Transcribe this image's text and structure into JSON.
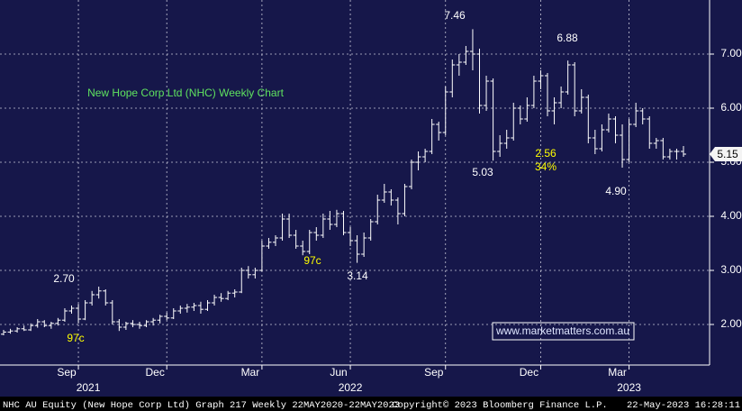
{
  "chart_data": {
    "type": "ohlc",
    "title": "New Hope Corp Ltd (NHC) Weekly Chart",
    "title_color": "#5fe35f",
    "bar_color": "#ffffff",
    "background": "#16174a",
    "grid": true,
    "ylim": [
      1.25,
      8.0
    ],
    "yticks": [
      {
        "value": 2,
        "label": "2.00"
      },
      {
        "value": 3,
        "label": "3.00"
      },
      {
        "value": 4,
        "label": "4.00"
      },
      {
        "value": 5,
        "label": "5.00"
      },
      {
        "value": 6,
        "label": "6.00"
      },
      {
        "value": 7,
        "label": "7.00"
      }
    ],
    "categories": [
      null,
      null,
      null,
      null,
      null,
      null,
      null,
      null,
      null,
      null,
      null,
      "Sep",
      null,
      null,
      null,
      null,
      null,
      null,
      null,
      null,
      null,
      null,
      null,
      null,
      "Dec",
      null,
      null,
      null,
      null,
      null,
      null,
      null,
      null,
      null,
      null,
      null,
      null,
      null,
      "Mar",
      null,
      null,
      null,
      null,
      null,
      null,
      null,
      null,
      null,
      null,
      null,
      null,
      "Jun",
      null,
      null,
      null,
      null,
      null,
      null,
      null,
      null,
      null,
      null,
      null,
      null,
      null,
      "Sep",
      null,
      null,
      null,
      null,
      null,
      null,
      null,
      null,
      null,
      null,
      null,
      null,
      null,
      "Dec",
      null,
      null,
      null,
      null,
      null,
      null,
      null,
      null,
      null,
      null,
      null,
      null,
      "Mar",
      null,
      null,
      null,
      null,
      null,
      null,
      null,
      null
    ],
    "years": [
      null,
      null,
      null,
      null,
      null,
      null,
      null,
      null,
      null,
      null,
      null,
      "2021",
      null,
      null,
      null,
      null,
      null,
      null,
      null,
      null,
      null,
      null,
      null,
      null,
      null,
      null,
      null,
      null,
      null,
      null,
      null,
      null,
      null,
      null,
      null,
      null,
      null,
      null,
      null,
      null,
      null,
      null,
      null,
      null,
      null,
      null,
      null,
      null,
      null,
      null,
      null,
      "2022",
      null,
      null,
      null,
      null,
      null,
      null,
      null,
      null,
      null,
      null,
      null,
      null,
      null,
      null,
      null,
      null,
      null,
      null,
      null,
      null,
      null,
      null,
      null,
      null,
      null,
      null,
      null,
      null,
      null,
      null,
      null,
      null,
      null,
      null,
      null,
      null,
      null,
      null,
      null,
      null,
      "2023",
      null,
      null,
      null,
      null,
      null,
      null,
      null,
      null
    ],
    "ohlc": [
      [
        1.82,
        1.9,
        1.8,
        1.86
      ],
      [
        1.86,
        1.92,
        1.83,
        1.88
      ],
      [
        1.88,
        1.95,
        1.85,
        1.92
      ],
      [
        1.92,
        1.98,
        1.88,
        1.9
      ],
      [
        1.9,
        2.02,
        1.88,
        1.98
      ],
      [
        1.98,
        2.1,
        1.94,
        2.05
      ],
      [
        2.05,
        2.08,
        1.95,
        1.98
      ],
      [
        1.98,
        2.05,
        1.92,
        2.02
      ],
      [
        2.02,
        2.12,
        1.98,
        2.08
      ],
      [
        2.08,
        2.3,
        2.05,
        2.25
      ],
      [
        2.25,
        2.35,
        2.2,
        2.3
      ],
      [
        2.3,
        2.38,
        2.02,
        2.1
      ],
      [
        2.1,
        2.45,
        2.08,
        2.4
      ],
      [
        2.4,
        2.62,
        2.35,
        2.55
      ],
      [
        2.55,
        2.7,
        2.48,
        2.62
      ],
      [
        2.62,
        2.65,
        2.35,
        2.4
      ],
      [
        2.4,
        2.45,
        2.0,
        2.05
      ],
      [
        2.05,
        2.1,
        1.88,
        1.95
      ],
      [
        1.95,
        2.05,
        1.9,
        2.02
      ],
      [
        2.02,
        2.08,
        1.95,
        2.0
      ],
      [
        2.0,
        2.05,
        1.92,
        1.98
      ],
      [
        1.98,
        2.08,
        1.95,
        2.05
      ],
      [
        2.05,
        2.12,
        1.98,
        2.08
      ],
      [
        2.08,
        2.18,
        2.02,
        2.15
      ],
      [
        2.15,
        2.22,
        2.08,
        2.12
      ],
      [
        2.12,
        2.3,
        2.1,
        2.25
      ],
      [
        2.25,
        2.35,
        2.2,
        2.3
      ],
      [
        2.3,
        2.38,
        2.22,
        2.32
      ],
      [
        2.32,
        2.4,
        2.25,
        2.35
      ],
      [
        2.35,
        2.42,
        2.2,
        2.28
      ],
      [
        2.28,
        2.45,
        2.25,
        2.4
      ],
      [
        2.4,
        2.55,
        2.35,
        2.5
      ],
      [
        2.5,
        2.58,
        2.42,
        2.48
      ],
      [
        2.48,
        2.62,
        2.45,
        2.58
      ],
      [
        2.58,
        2.65,
        2.5,
        2.6
      ],
      [
        2.6,
        3.05,
        2.58,
        3.0
      ],
      [
        3.0,
        3.08,
        2.85,
        2.92
      ],
      [
        2.92,
        3.05,
        2.85,
        3.0
      ],
      [
        3.0,
        3.55,
        2.98,
        3.45
      ],
      [
        3.45,
        3.6,
        3.4,
        3.52
      ],
      [
        3.52,
        3.65,
        3.45,
        3.6
      ],
      [
        3.6,
        4.05,
        3.55,
        3.95
      ],
      [
        3.95,
        4.05,
        3.6,
        3.65
      ],
      [
        3.65,
        3.75,
        3.4,
        3.45
      ],
      [
        3.45,
        3.55,
        3.28,
        3.35
      ],
      [
        3.35,
        3.75,
        3.3,
        3.7
      ],
      [
        3.7,
        3.8,
        3.55,
        3.65
      ],
      [
        3.65,
        4.05,
        3.6,
        3.95
      ],
      [
        3.95,
        4.1,
        3.75,
        3.85
      ],
      [
        3.85,
        4.12,
        3.8,
        4.05
      ],
      [
        4.05,
        4.1,
        3.65,
        3.7
      ],
      [
        3.7,
        3.8,
        3.45,
        3.55
      ],
      [
        3.55,
        3.65,
        3.14,
        3.3
      ],
      [
        3.3,
        3.7,
        3.25,
        3.6
      ],
      [
        3.6,
        3.95,
        3.55,
        3.9
      ],
      [
        3.9,
        4.4,
        3.85,
        4.3
      ],
      [
        4.3,
        4.6,
        4.25,
        4.45
      ],
      [
        4.45,
        4.5,
        4.2,
        4.3
      ],
      [
        4.3,
        4.35,
        3.85,
        4.05
      ],
      [
        4.05,
        4.6,
        4.0,
        4.55
      ],
      [
        4.55,
        5.05,
        4.5,
        5.0
      ],
      [
        5.0,
        5.2,
        4.85,
        5.1
      ],
      [
        5.1,
        5.25,
        5.0,
        5.2
      ],
      [
        5.2,
        5.8,
        5.15,
        5.7
      ],
      [
        5.7,
        5.75,
        5.4,
        5.55
      ],
      [
        5.55,
        6.4,
        5.5,
        6.3
      ],
      [
        6.3,
        6.9,
        6.2,
        6.8
      ],
      [
        6.8,
        7.0,
        6.6,
        6.85
      ],
      [
        6.85,
        7.15,
        6.8,
        7.05
      ],
      [
        7.05,
        7.46,
        6.7,
        7.0
      ],
      [
        7.0,
        7.1,
        5.9,
        6.05
      ],
      [
        6.05,
        6.6,
        5.95,
        6.5
      ],
      [
        6.5,
        6.55,
        5.03,
        5.2
      ],
      [
        5.2,
        5.5,
        5.1,
        5.35
      ],
      [
        5.35,
        5.6,
        5.25,
        5.45
      ],
      [
        5.45,
        6.1,
        5.4,
        6.0
      ],
      [
        6.0,
        6.05,
        5.7,
        5.8
      ],
      [
        5.8,
        6.2,
        5.75,
        6.05
      ],
      [
        6.05,
        6.6,
        6.0,
        6.5
      ],
      [
        6.5,
        6.7,
        6.35,
        6.6
      ],
      [
        6.6,
        6.65,
        5.85,
        5.95
      ],
      [
        5.95,
        6.2,
        5.7,
        6.1
      ],
      [
        6.1,
        6.4,
        6.0,
        6.3
      ],
      [
        6.3,
        6.88,
        6.25,
        6.8
      ],
      [
        6.8,
        6.85,
        5.85,
        5.95
      ],
      [
        5.95,
        6.35,
        5.9,
        6.2
      ],
      [
        6.2,
        6.25,
        5.35,
        5.45
      ],
      [
        5.45,
        5.6,
        5.15,
        5.25
      ],
      [
        5.25,
        5.7,
        5.2,
        5.6
      ],
      [
        5.6,
        5.9,
        5.55,
        5.8
      ],
      [
        5.8,
        5.85,
        5.35,
        5.5
      ],
      [
        5.5,
        5.7,
        4.9,
        5.05
      ],
      [
        5.05,
        5.8,
        5.0,
        5.7
      ],
      [
        5.7,
        6.1,
        5.65,
        5.95
      ],
      [
        5.95,
        6.0,
        5.7,
        5.8
      ],
      [
        5.8,
        5.85,
        5.25,
        5.35
      ],
      [
        5.35,
        5.45,
        5.25,
        5.4
      ],
      [
        5.4,
        5.45,
        5.05,
        5.1
      ],
      [
        5.1,
        5.25,
        5.05,
        5.2
      ],
      [
        5.2,
        5.25,
        5.05,
        5.2
      ],
      [
        5.2,
        5.3,
        5.1,
        5.15
      ]
    ],
    "last_price": 5.15,
    "annotations": [
      {
        "text": "7.46",
        "color": "#ffffff"
      },
      {
        "text": "6.88",
        "color": "#ffffff"
      },
      {
        "text": "5.03",
        "color": "#ffffff"
      },
      {
        "text": "2.56",
        "color": "#ffff00"
      },
      {
        "text": "34%",
        "color": "#ffff00"
      },
      {
        "text": "4.90",
        "color": "#ffffff"
      },
      {
        "text": "2.70",
        "color": "#ffffff"
      },
      {
        "text": "97c",
        "color": "#ffff00"
      },
      {
        "text": "97c",
        "color": "#ffff00"
      },
      {
        "text": "3.14",
        "color": "#ffffff"
      }
    ],
    "website": "www.marketmatters.com.au",
    "footer": {
      "left": "NHC AU Equity (New Hope Corp Ltd) Graph 217  Weekly 22MAY2020-22MAY2023",
      "center": "Copyright© 2023 Bloomberg Finance L.P.",
      "right": "22-May-2023 16:28:11"
    }
  }
}
